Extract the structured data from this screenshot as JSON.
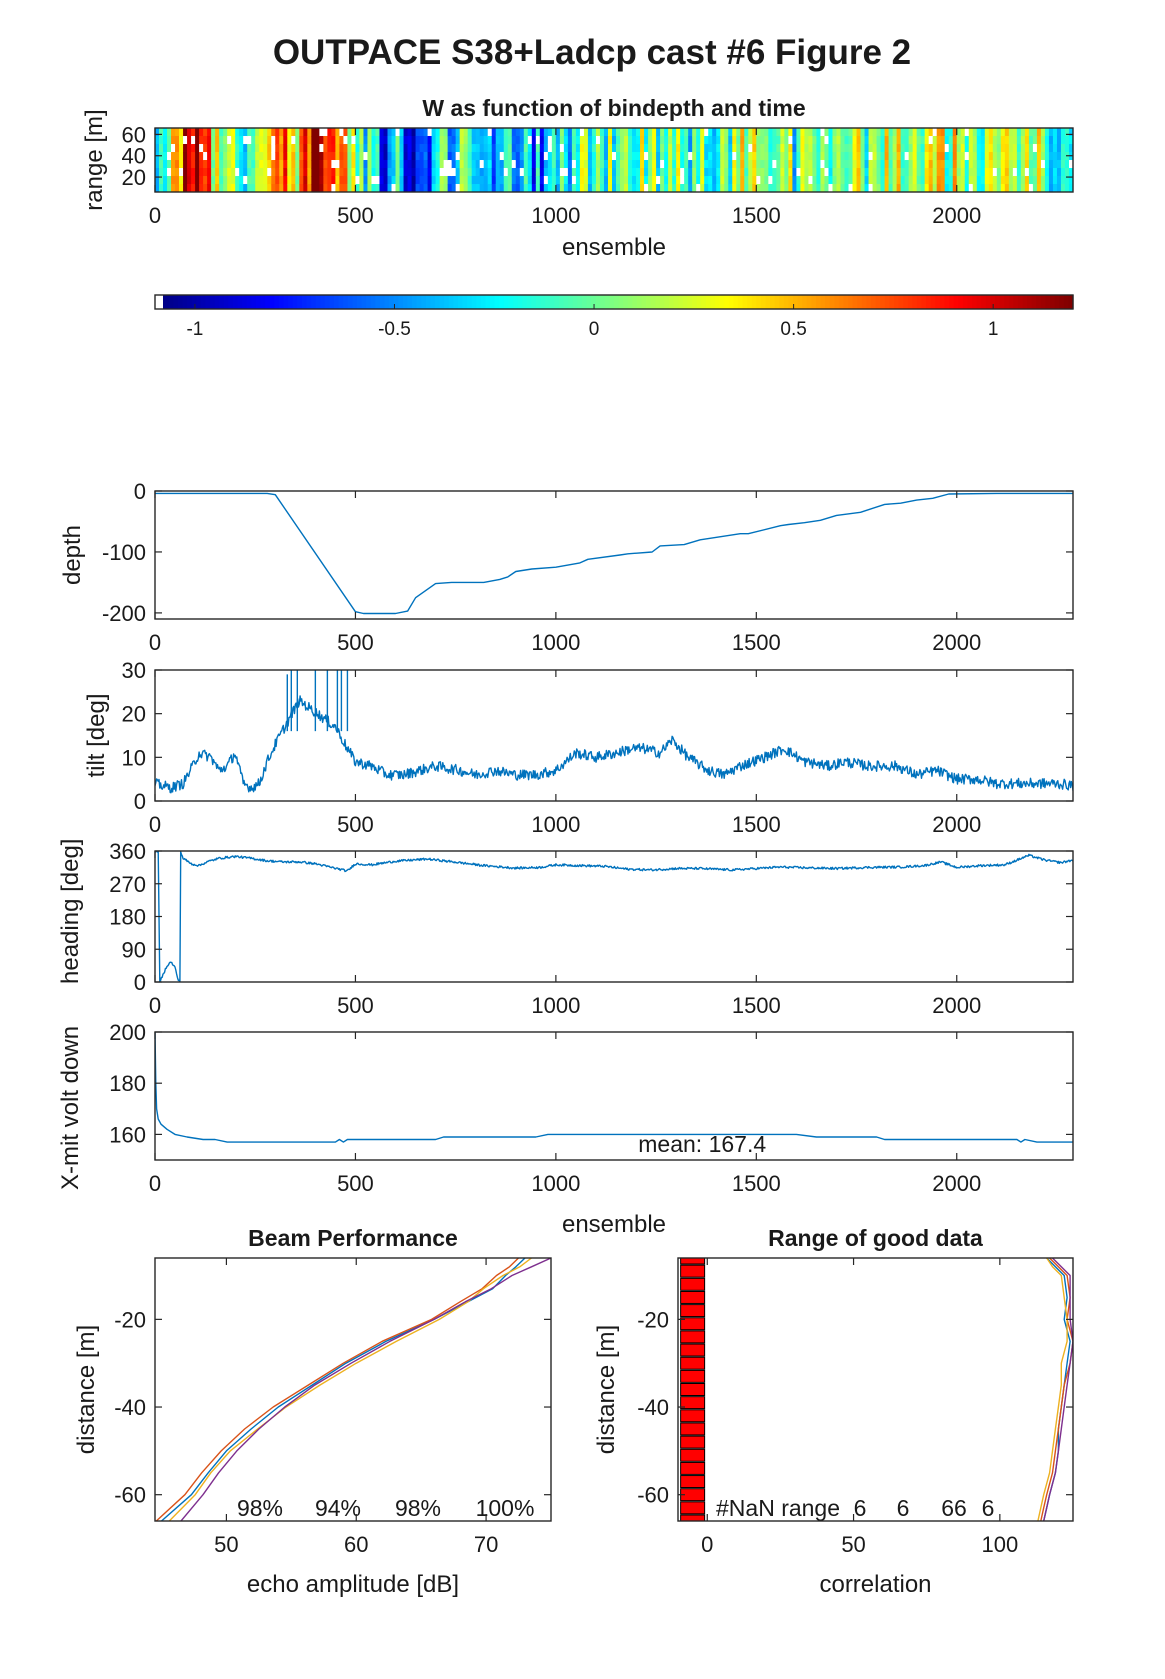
{
  "figure": {
    "title": "OUTPACE S38+Ladcp cast #6 Figure 2"
  },
  "colors": {
    "line": "#0072bd",
    "nan_marker": "#ff0000",
    "profile_colors": [
      "#0072bd",
      "#d95319",
      "#edb120",
      "#7e2f8e"
    ],
    "frame": "#262626"
  },
  "chart_data": [
    {
      "id": "w_image",
      "type": "heatmap",
      "title": "W as function of bindepth and time",
      "xlabel": "ensemble",
      "ylabel": "range [m]",
      "xlim": [
        0,
        2290
      ],
      "ylim": [
        66,
        6
      ],
      "xticks": [
        0,
        500,
        1000,
        1500,
        2000
      ],
      "yticks": [
        20,
        40,
        60
      ],
      "colormap": "jet",
      "clim": [
        -1.1,
        1.2
      ],
      "colorbar_ticks": [
        -1,
        -0.5,
        0,
        0.5,
        1
      ],
      "column_width_ensembles": 10,
      "column_means": [
        {
          "x": 0,
          "w": -0.55
        },
        {
          "x": 60,
          "w": 0.7
        },
        {
          "x": 100,
          "w": 0.95
        },
        {
          "x": 150,
          "w": 0.3
        },
        {
          "x": 200,
          "w": -0.1
        },
        {
          "x": 260,
          "w": 0.2
        },
        {
          "x": 300,
          "w": 0.85
        },
        {
          "x": 340,
          "w": 0.3
        },
        {
          "x": 390,
          "w": 1.05
        },
        {
          "x": 440,
          "w": 0.7
        },
        {
          "x": 480,
          "w": 0.35
        },
        {
          "x": 520,
          "w": -0.2
        },
        {
          "x": 560,
          "w": -0.6
        },
        {
          "x": 600,
          "w": -0.35
        },
        {
          "x": 650,
          "w": -0.8
        },
        {
          "x": 700,
          "w": -0.3
        },
        {
          "x": 760,
          "w": -0.05
        },
        {
          "x": 820,
          "w": -0.4
        },
        {
          "x": 880,
          "w": -0.15
        },
        {
          "x": 940,
          "w": -0.55
        },
        {
          "x": 1000,
          "w": -0.2
        },
        {
          "x": 1060,
          "w": -0.05
        },
        {
          "x": 1120,
          "w": -0.1
        },
        {
          "x": 1180,
          "w": 0.15
        },
        {
          "x": 1240,
          "w": 0.1
        },
        {
          "x": 1300,
          "w": 0.0
        },
        {
          "x": 1360,
          "w": -0.1
        },
        {
          "x": 1420,
          "w": 0.05
        },
        {
          "x": 1480,
          "w": 0.15
        },
        {
          "x": 1540,
          "w": 0.0
        },
        {
          "x": 1600,
          "w": -0.05
        },
        {
          "x": 1660,
          "w": 0.1
        },
        {
          "x": 1720,
          "w": 0.0
        },
        {
          "x": 1780,
          "w": 0.05
        },
        {
          "x": 1840,
          "w": 0.1
        },
        {
          "x": 1900,
          "w": 0.15
        },
        {
          "x": 1960,
          "w": 0.2
        },
        {
          "x": 2020,
          "w": 0.15
        },
        {
          "x": 2080,
          "w": 0.05
        },
        {
          "x": 2140,
          "w": 0.1
        },
        {
          "x": 2200,
          "w": 0.05
        },
        {
          "x": 2260,
          "w": -0.15
        },
        {
          "x": 2290,
          "w": -0.1
        }
      ]
    },
    {
      "id": "depth",
      "type": "line",
      "title": "",
      "xlabel": "",
      "ylabel": "depth",
      "xlim": [
        0,
        2290
      ],
      "ylim": [
        -210,
        0
      ],
      "xticks": [
        0,
        500,
        1000,
        1500,
        2000
      ],
      "yticks": [
        0,
        -100,
        -200
      ],
      "x": [
        0,
        280,
        300,
        500,
        520,
        600,
        630,
        650,
        700,
        740,
        820,
        860,
        880,
        900,
        940,
        1000,
        1060,
        1080,
        1160,
        1180,
        1240,
        1260,
        1320,
        1360,
        1460,
        1480,
        1560,
        1580,
        1620,
        1660,
        1700,
        1760,
        1820,
        1860,
        1900,
        1940,
        1980,
        2100,
        2290
      ],
      "y": [
        -4,
        -4,
        -6,
        -198,
        -201,
        -201,
        -197,
        -175,
        -152,
        -150,
        -150,
        -145,
        -141,
        -132,
        -128,
        -125,
        -118,
        -112,
        -105,
        -103,
        -100,
        -90,
        -88,
        -80,
        -70,
        -70,
        -57,
        -55,
        -52,
        -48,
        -40,
        -35,
        -22,
        -20,
        -15,
        -12,
        -5,
        -4,
        -4
      ]
    },
    {
      "id": "tilt",
      "type": "line",
      "title": "",
      "xlabel": "",
      "ylabel": "tilt [deg]",
      "xlim": [
        0,
        2290
      ],
      "ylim": [
        0,
        30
      ],
      "xticks": [
        0,
        500,
        1000,
        1500,
        2000
      ],
      "yticks": [
        0,
        10,
        20,
        30
      ],
      "x": [
        0,
        40,
        70,
        100,
        110,
        140,
        160,
        180,
        200,
        220,
        240,
        260,
        280,
        300,
        330,
        360,
        390,
        420,
        450,
        480,
        500,
        540,
        580,
        620,
        700,
        760,
        800,
        850,
        900,
        950,
        1000,
        1050,
        1100,
        1150,
        1190,
        1220,
        1260,
        1290,
        1330,
        1380,
        1420,
        1460,
        1520,
        1570,
        1620,
        1680,
        1720,
        1780,
        1850,
        1900,
        1950,
        2000,
        2050,
        2100,
        2150,
        2200,
        2250,
        2290
      ],
      "y": [
        4,
        3,
        4,
        9,
        11,
        10,
        7,
        8,
        11,
        4,
        3,
        4,
        9,
        13,
        18,
        23,
        21,
        19,
        17,
        12,
        9,
        8,
        6,
        6,
        8,
        7,
        6,
        7,
        6,
        6,
        7,
        11,
        10,
        11,
        12,
        12,
        11,
        14,
        10,
        7,
        6,
        8,
        10,
        12,
        9,
        8,
        9,
        8,
        8,
        6,
        7,
        5,
        5,
        4,
        4,
        4,
        4,
        3.5
      ],
      "noise_amplitude": 1.2
    },
    {
      "id": "heading",
      "type": "line",
      "title": "",
      "xlabel": "",
      "ylabel": "heading [deg]",
      "xlim": [
        0,
        2290
      ],
      "ylim": [
        0,
        360
      ],
      "xticks": [
        0,
        500,
        1000,
        1500,
        2000
      ],
      "yticks": [
        0,
        90,
        180,
        270,
        360
      ],
      "x": [
        0,
        8,
        12,
        20,
        30,
        40,
        50,
        58,
        62,
        63,
        70,
        90,
        110,
        130,
        160,
        200,
        240,
        280,
        320,
        360,
        400,
        440,
        480,
        500,
        540,
        600,
        680,
        760,
        820,
        900,
        960,
        1000,
        1060,
        1120,
        1180,
        1240,
        1300,
        1360,
        1400,
        1440,
        1500,
        1560,
        1620,
        1700,
        1780,
        1860,
        1920,
        1960,
        2000,
        2060,
        2120,
        2180,
        2220,
        2260,
        2290
      ],
      "y": [
        360,
        360,
        0,
        20,
        45,
        55,
        40,
        5,
        0,
        360,
        340,
        325,
        320,
        330,
        340,
        345,
        340,
        333,
        330,
        330,
        325,
        315,
        305,
        325,
        322,
        332,
        338,
        328,
        320,
        313,
        315,
        322,
        320,
        318,
        310,
        308,
        312,
        312,
        310,
        308,
        312,
        316,
        314,
        312,
        315,
        316,
        320,
        330,
        315,
        320,
        322,
        348,
        335,
        328,
        335
      ],
      "noise_amplitude": 3
    },
    {
      "id": "xmit",
      "type": "line",
      "title": "",
      "xlabel": "ensemble",
      "ylabel": "X-mit volt down",
      "xlim": [
        0,
        2290
      ],
      "ylim": [
        150,
        200
      ],
      "xticks": [
        0,
        500,
        1000,
        1500,
        2000
      ],
      "yticks": [
        160,
        180,
        200
      ],
      "annotation": "mean: 167.4",
      "x": [
        0,
        2,
        4,
        8,
        15,
        30,
        50,
        80,
        120,
        150,
        180,
        450,
        460,
        470,
        480,
        490,
        500,
        700,
        720,
        950,
        980,
        1400,
        1600,
        1650,
        1800,
        1820,
        2150,
        2160,
        2170,
        2200,
        2220,
        2290
      ],
      "y": [
        200,
        180,
        170,
        166,
        164,
        162,
        160,
        159,
        158,
        158,
        157,
        157,
        158,
        157,
        158,
        158,
        158,
        158,
        159,
        159,
        160,
        160,
        160,
        159,
        159,
        158,
        158,
        157,
        158,
        157,
        157,
        157
      ]
    },
    {
      "id": "beam",
      "type": "line",
      "title": "Beam Performance",
      "xlabel": "echo amplitude [dB]",
      "ylabel": "distance [m]",
      "xlim": [
        44.5,
        75
      ],
      "ylim": [
        -66,
        -6
      ],
      "xticks": [
        50,
        60,
        70
      ],
      "yticks": [
        -20,
        -40,
        -60
      ],
      "percent_labels": [
        "98%",
        "94%",
        "98%",
        "100%"
      ],
      "series": [
        {
          "y": [
            -6,
            -8,
            -10,
            -13,
            -16,
            -20,
            -25,
            -30,
            -35,
            -40,
            -45,
            -50,
            -55,
            -60,
            -66
          ],
          "x": [
            73,
            72.3,
            71.5,
            70.5,
            68.6,
            66.0,
            62.3,
            59.2,
            56.6,
            54.0,
            51.9,
            50.0,
            48.6,
            47.3,
            45.0
          ]
        },
        {
          "y": [
            -6,
            -8,
            -10,
            -13,
            -16,
            -20,
            -25,
            -30,
            -35,
            -40,
            -45,
            -50,
            -55,
            -60,
            -66
          ],
          "x": [
            72.5,
            71.8,
            70.8,
            69.7,
            68.0,
            65.8,
            62.0,
            59.0,
            56.3,
            53.6,
            51.4,
            49.6,
            48.1,
            46.8,
            44.6
          ]
        },
        {
          "y": [
            -6,
            -8,
            -10,
            -13,
            -16,
            -20,
            -25,
            -30,
            -35,
            -40,
            -45,
            -50,
            -55,
            -60,
            -66
          ],
          "x": [
            73.5,
            72.6,
            71.3,
            69.8,
            68.6,
            66.4,
            63.1,
            60.0,
            57.2,
            54.6,
            52.4,
            50.3,
            48.8,
            47.6,
            45.6
          ]
        },
        {
          "y": [
            -6,
            -8,
            -10,
            -13,
            -16,
            -20,
            -25,
            -30,
            -35,
            -40,
            -45,
            -50,
            -55,
            -60,
            -66
          ],
          "x": [
            75,
            73.5,
            72.0,
            70.4,
            68.4,
            66.0,
            62.6,
            59.6,
            56.8,
            54.5,
            52.5,
            50.8,
            49.4,
            48.2,
            46.5
          ]
        }
      ]
    },
    {
      "id": "range_good",
      "type": "line",
      "title": "Range of good data",
      "xlabel": "correlation",
      "ylabel": "distance [m]",
      "xlim": [
        -10,
        125
      ],
      "ylim": [
        -66,
        -6
      ],
      "xticks": [
        0,
        50,
        100
      ],
      "yticks": [
        -20,
        -40,
        -60
      ],
      "nan_label": "#NaN range",
      "nan_counts": [
        "6",
        "6",
        "66",
        "6"
      ],
      "nan_markers_x": -5,
      "nan_markers_y": [
        -6,
        -9,
        -12,
        -15,
        -18,
        -21,
        -24,
        -27,
        -30,
        -33,
        -36,
        -39,
        -42,
        -45,
        -48,
        -51,
        -54,
        -57,
        -60,
        -63,
        -66
      ],
      "series": [
        {
          "y": [
            -6,
            -8,
            -10,
            -15,
            -20,
            -25,
            -30,
            -35,
            -40,
            -45,
            -50,
            -55,
            -60,
            -63,
            -66
          ],
          "x": [
            116,
            119,
            122,
            123,
            122,
            124,
            123,
            122,
            121,
            120,
            120,
            119,
            117,
            116,
            115
          ]
        },
        {
          "y": [
            -6,
            -8,
            -10,
            -15,
            -20,
            -25,
            -30,
            -35,
            -40,
            -45,
            -50,
            -55,
            -60,
            -63,
            -66
          ],
          "x": [
            117,
            120,
            123,
            124,
            123,
            125,
            124,
            122,
            121,
            120,
            119,
            118,
            116,
            115,
            114
          ]
        },
        {
          "y": [
            -6,
            -8,
            -10,
            -15,
            -20,
            -25,
            -30,
            -35,
            -40,
            -45,
            -50,
            -55,
            -60,
            -63,
            -66
          ],
          "x": [
            116,
            118,
            121,
            122,
            123,
            123,
            121,
            121,
            120,
            119,
            118,
            117,
            115,
            114,
            113
          ]
        },
        {
          "y": [
            -6,
            -8,
            -10,
            -15,
            -20,
            -25,
            -30,
            -35,
            -40,
            -45,
            -50,
            -55,
            -60,
            -63,
            -66
          ],
          "x": [
            118,
            121,
            124,
            124,
            124,
            125,
            124,
            123,
            122,
            121,
            120,
            119,
            117,
            116,
            115
          ]
        }
      ]
    }
  ]
}
